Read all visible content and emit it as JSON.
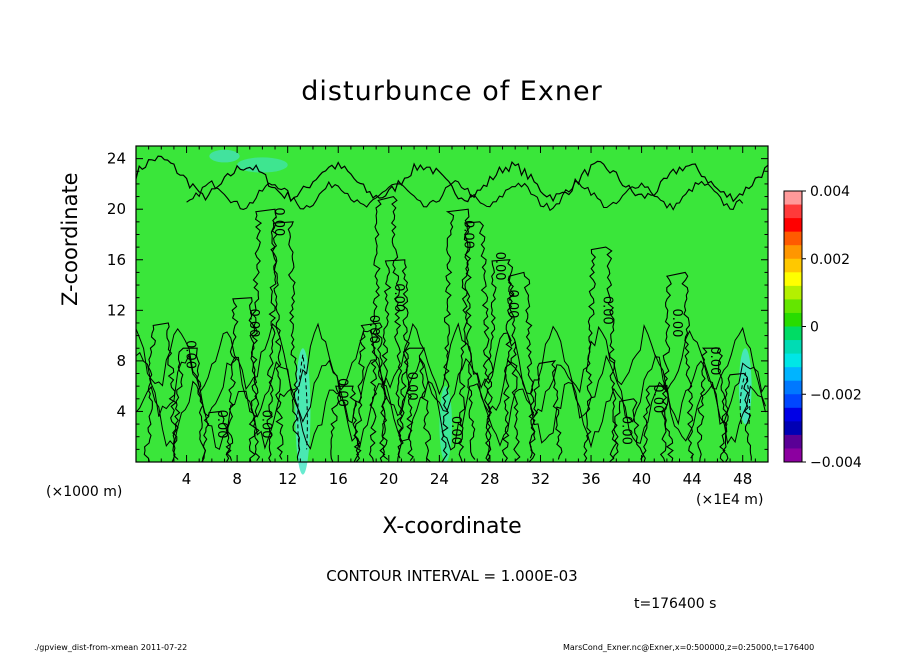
{
  "chart_data": {
    "type": "heatmap",
    "title": "disturbunce of Exner",
    "xlabel": "X-coordinate",
    "ylabel": "Z-coordinate",
    "x_unit_label": "(×1000 m)",
    "x_unit_label_right": "(×1E4 m)",
    "xlim": [
      0,
      50
    ],
    "ylim": [
      0,
      25
    ],
    "x_ticks": [
      "4",
      "8",
      "12",
      "16",
      "20",
      "24",
      "28",
      "32",
      "36",
      "40",
      "44",
      "48"
    ],
    "x_tick_values": [
      4,
      8,
      12,
      16,
      20,
      24,
      28,
      32,
      36,
      40,
      44,
      48
    ],
    "y_ticks": [
      "4",
      "8",
      "12",
      "16",
      "20",
      "24"
    ],
    "y_tick_values": [
      4,
      8,
      12,
      16,
      20,
      24
    ],
    "contour_interval_text": "CONTOUR INTERVAL = 1.000E-03",
    "contour_label": "0.00",
    "contour_label_positions": [
      {
        "x": 4,
        "z": 8.5
      },
      {
        "x": 6.5,
        "z": 3
      },
      {
        "x": 9,
        "z": 11
      },
      {
        "x": 10,
        "z": 3
      },
      {
        "x": 11,
        "z": 19
      },
      {
        "x": 18.5,
        "z": 10.5
      },
      {
        "x": 20.5,
        "z": 13
      },
      {
        "x": 21.5,
        "z": 6
      },
      {
        "x": 16,
        "z": 5.5
      },
      {
        "x": 25,
        "z": 2.5
      },
      {
        "x": 26,
        "z": 18
      },
      {
        "x": 28.5,
        "z": 15.5
      },
      {
        "x": 29.5,
        "z": 12.5
      },
      {
        "x": 37,
        "z": 12
      },
      {
        "x": 38.5,
        "z": 2.5
      },
      {
        "x": 41,
        "z": 5
      },
      {
        "x": 42.5,
        "z": 11
      },
      {
        "x": 45.5,
        "z": 8
      }
    ],
    "colorbar": {
      "min": -0.004,
      "max": 0.004,
      "tick_labels": [
        "0.004",
        "0.002",
        "0",
        "−0.002",
        "−0.004"
      ],
      "tick_values": [
        0.004,
        0.002,
        0,
        -0.002,
        -0.004
      ],
      "colors": [
        "#ff9a9a",
        "#ff3a3a",
        "#ff0000",
        "#ff5a00",
        "#ff9600",
        "#ffc800",
        "#ffff00",
        "#b4f000",
        "#64e600",
        "#28dc00",
        "#00dc64",
        "#00dcb4",
        "#00e6e6",
        "#00b4ff",
        "#0078ff",
        "#0046ff",
        "#0000e6",
        "#0000b4",
        "#5a0096",
        "#8c00a0"
      ]
    },
    "background_color": "#3ae63a",
    "time_label": "t=176400 s"
  },
  "footer": {
    "left": "./gpview_dist-from-xmean  2011-07-22",
    "right": "MarsCond_Exner.nc@Exner,x=0:500000,z=0:25000,t=176400"
  }
}
